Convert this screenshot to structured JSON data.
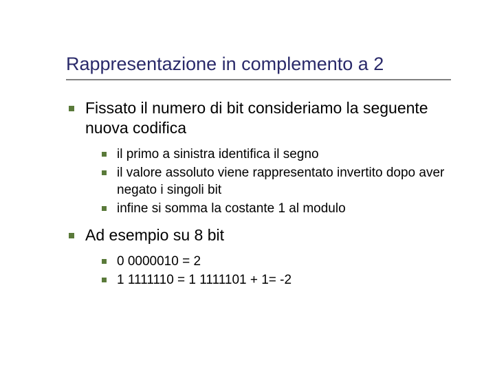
{
  "slide": {
    "background_color": "#ffffff",
    "title": {
      "text": "Rappresentazione in complemento a 2",
      "color": "#2a2a6a",
      "fontsize": 27,
      "underline_color": "#808080",
      "underline_width": 560
    },
    "bullet": {
      "color": "#5a7a3a",
      "shape": "square"
    },
    "body_color": "#000000",
    "items": [
      {
        "text": "Fissato il numero di bit consideriamo la seguente nuova codifica",
        "fontsize": 23,
        "children": [
          {
            "text": "il primo a sinistra identifica il segno",
            "fontsize": 19
          },
          {
            "text": "il valore assoluto viene rappresentato invertito dopo aver negato i singoli bit",
            "fontsize": 19
          },
          {
            "text": "infine si somma la costante 1 al modulo",
            "fontsize": 19
          }
        ]
      },
      {
        "text": "Ad esempio su 8 bit",
        "fontsize": 23,
        "children": [
          {
            "text": "0 0000010 = 2",
            "fontsize": 19
          },
          {
            "text": "1 1111110 = 1 1111101 + 1= -2",
            "fontsize": 19
          }
        ]
      }
    ]
  }
}
